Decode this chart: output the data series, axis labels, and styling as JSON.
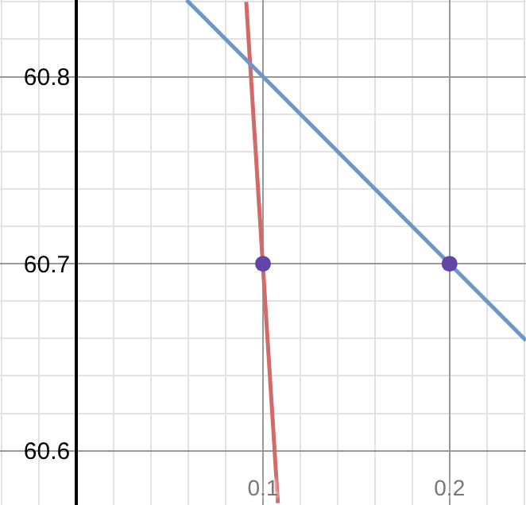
{
  "chart_data": {
    "type": "line",
    "xlim": [
      -0.041,
      0.241
    ],
    "ylim": [
      60.571,
      60.841
    ],
    "xticks": [
      0.1,
      0.2
    ],
    "yticks": [
      60.6,
      60.7,
      60.8
    ],
    "grid": true,
    "series": [
      {
        "color": "#d26a6a",
        "x": [
          0.091,
          0.108
        ],
        "values": [
          60.84,
          60.572
        ],
        "marker": "none"
      },
      {
        "color": "#6f97c6",
        "x": [
          0.059,
          0.241
        ],
        "values": [
          60.841,
          60.659
        ],
        "marker": "none"
      },
      {
        "type": "scatter",
        "color": "#6245a8",
        "x": [
          0.1,
          0.2
        ],
        "values": [
          60.7,
          60.7
        ],
        "marker": "circle"
      }
    ]
  }
}
